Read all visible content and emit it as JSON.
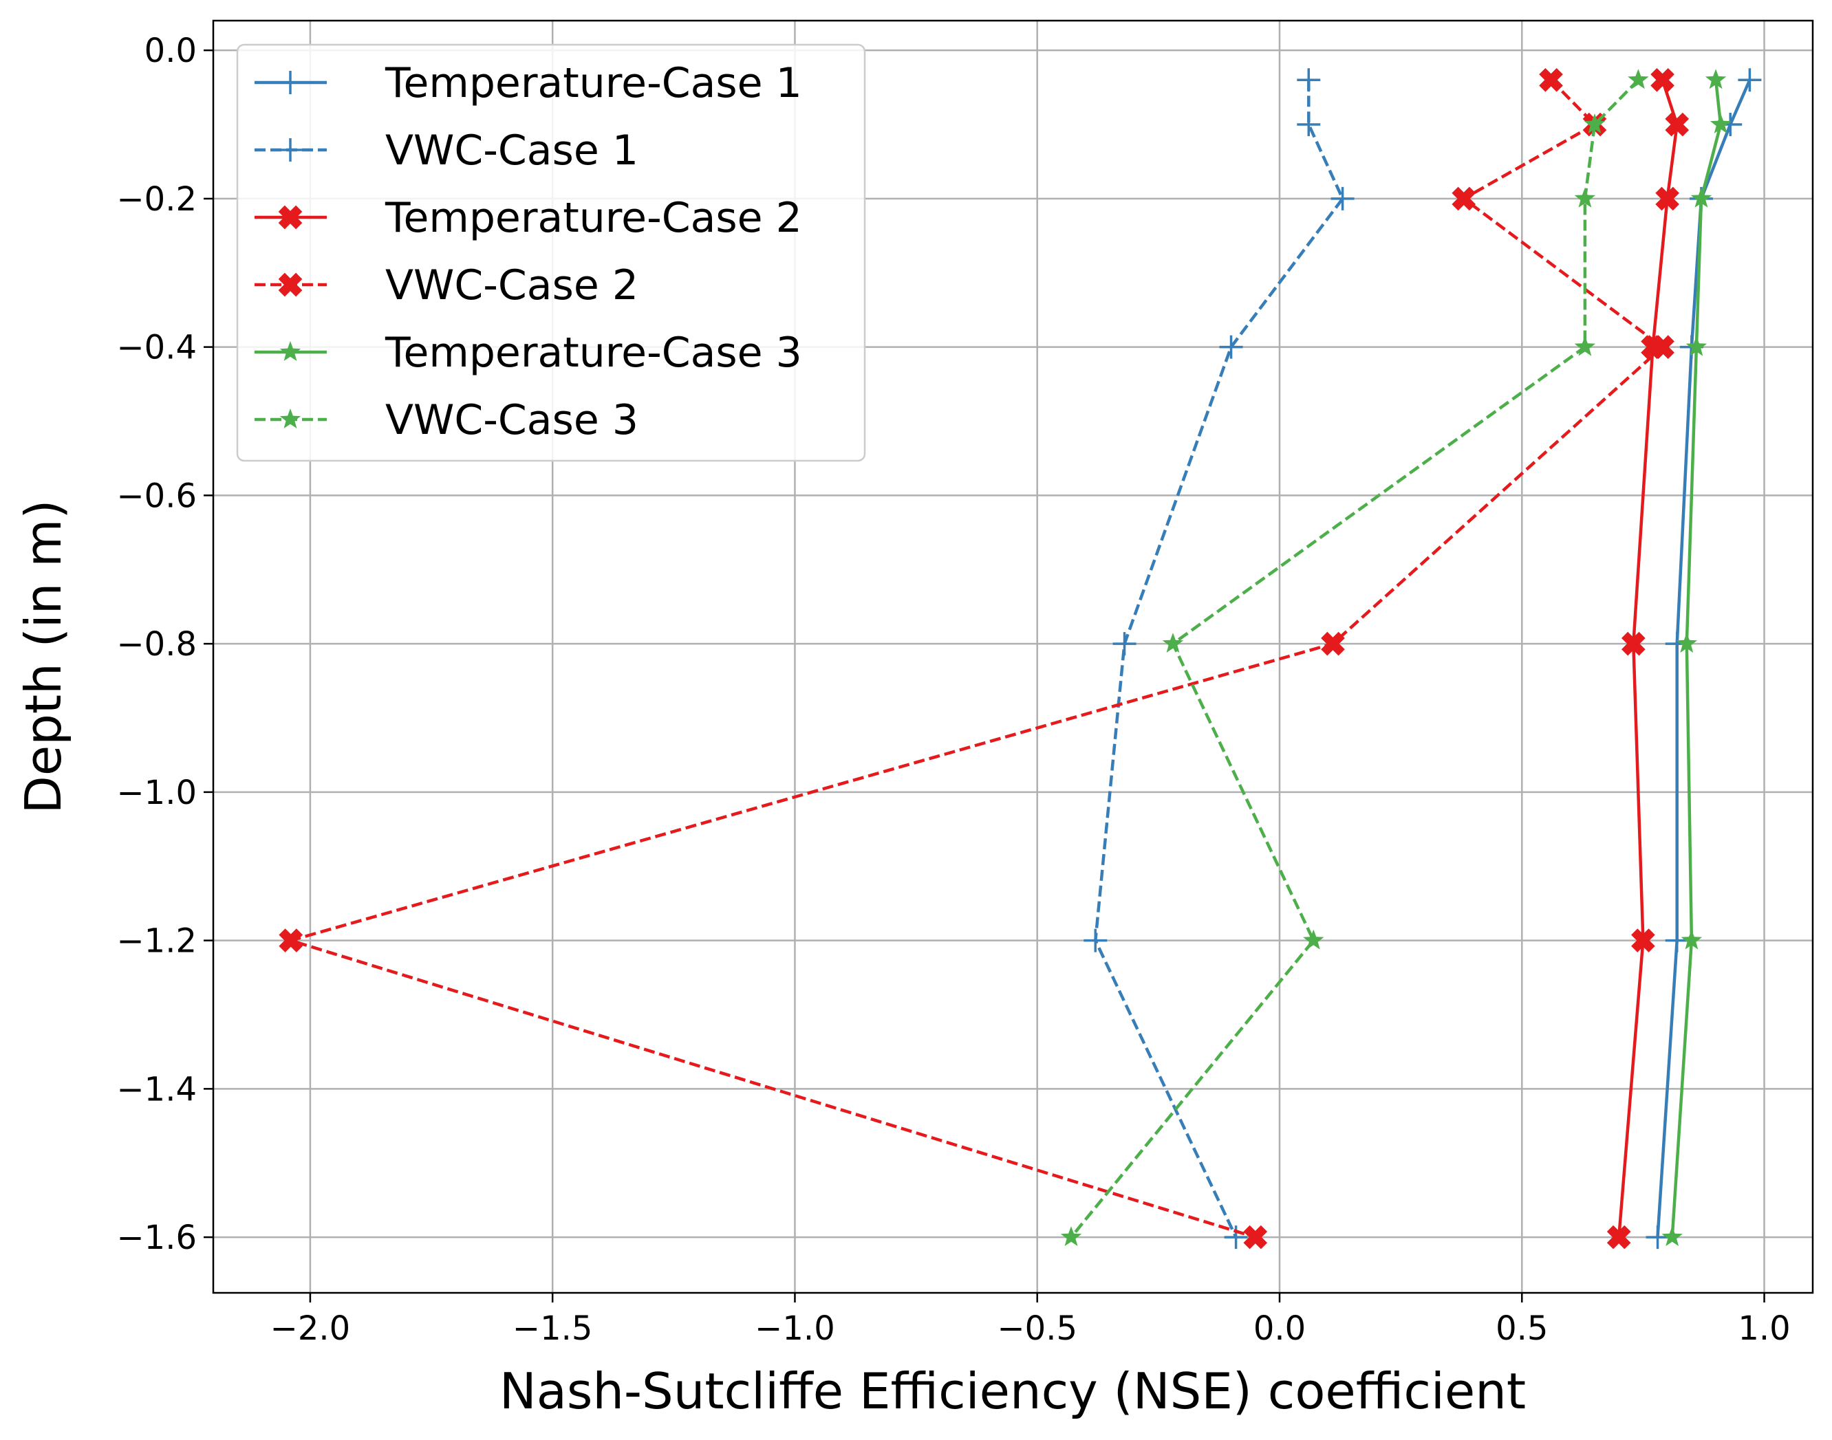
{
  "chart_data": {
    "type": "line",
    "title": "",
    "xlabel": "Nash-Sutcliffe Efficiency (NSE) coefficient",
    "ylabel": "Depth (in m)",
    "xlim": [
      -2.2,
      1.1
    ],
    "ylim": [
      -1.675,
      0.04
    ],
    "xticks": [
      -2.0,
      -1.5,
      -1.0,
      -0.5,
      0.0,
      0.5,
      1.0
    ],
    "xtick_labels": [
      "−2.0",
      "−1.5",
      "−1.0",
      "−0.5",
      "0.0",
      "0.5",
      "1.0"
    ],
    "yticks": [
      0.0,
      -0.2,
      -0.4,
      -0.6,
      -0.8,
      -1.0,
      -1.2,
      -1.4,
      -1.6
    ],
    "ytick_labels": [
      "0.0",
      "−0.2",
      "−0.4",
      "−0.6",
      "−0.8",
      "−1.0",
      "−1.2",
      "−1.4",
      "−1.6"
    ],
    "grid": true,
    "legend_position": "top-left",
    "series": [
      {
        "name": "Temperature-Case 1",
        "color": "#377eb8",
        "linestyle": "solid",
        "marker": "plus",
        "x": [
          0.97,
          0.93,
          0.87,
          0.85,
          0.82,
          0.82,
          0.78
        ],
        "y": [
          -0.04,
          -0.1,
          -0.2,
          -0.4,
          -0.8,
          -1.2,
          -1.6
        ]
      },
      {
        "name": "VWC-Case 1",
        "color": "#377eb8",
        "linestyle": "dashed",
        "marker": "plus",
        "x": [
          0.06,
          0.06,
          0.13,
          -0.1,
          -0.32,
          -0.38,
          -0.09
        ],
        "y": [
          -0.04,
          -0.1,
          -0.2,
          -0.4,
          -0.8,
          -1.2,
          -1.6
        ]
      },
      {
        "name": "Temperature-Case 2",
        "color": "#e41a1c",
        "linestyle": "solid",
        "marker": "x-filled",
        "x": [
          0.79,
          0.82,
          0.8,
          0.77,
          0.73,
          0.75,
          0.7
        ],
        "y": [
          -0.04,
          -0.1,
          -0.2,
          -0.4,
          -0.8,
          -1.2,
          -1.6
        ]
      },
      {
        "name": "VWC-Case 2",
        "color": "#e41a1c",
        "linestyle": "dashed",
        "marker": "x-filled",
        "x": [
          0.56,
          0.65,
          0.38,
          0.79,
          0.11,
          -2.04,
          -0.05
        ],
        "y": [
          -0.04,
          -0.1,
          -0.2,
          -0.4,
          -0.8,
          -1.2,
          -1.6
        ]
      },
      {
        "name": "Temperature-Case 3",
        "color": "#4daf4a",
        "linestyle": "solid",
        "marker": "star",
        "x": [
          0.9,
          0.91,
          0.87,
          0.86,
          0.84,
          0.85,
          0.81
        ],
        "y": [
          -0.04,
          -0.1,
          -0.2,
          -0.4,
          -0.8,
          -1.2,
          -1.6
        ]
      },
      {
        "name": "VWC-Case 3",
        "color": "#4daf4a",
        "linestyle": "dashed",
        "marker": "star",
        "x": [
          0.74,
          0.65,
          0.63,
          0.63,
          -0.22,
          0.07,
          -0.43
        ],
        "y": [
          -0.04,
          -0.1,
          -0.2,
          -0.4,
          -0.8,
          -1.2,
          -1.6
        ]
      }
    ]
  }
}
